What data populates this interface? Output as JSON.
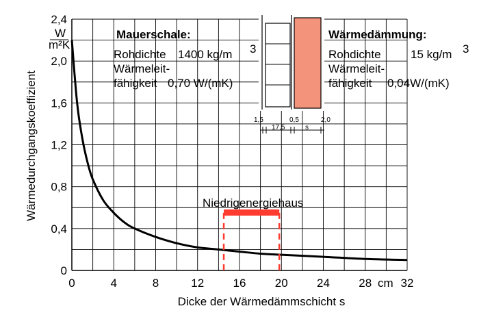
{
  "chart_data": {
    "type": "line",
    "xlabel": "Dicke der Wärmedämmschicht s",
    "ylabel": "Wärmedurchgangskoeffizient",
    "x_unit": "cm",
    "y_unit_num": "W",
    "y_unit_den": "m²K",
    "xlim": [
      0,
      32
    ],
    "ylim": [
      0,
      2.4
    ],
    "x_ticks": [
      "0",
      "4",
      "8",
      "12",
      "16",
      "20",
      "24",
      "28",
      "32"
    ],
    "y_ticks": [
      "0",
      "0,4",
      "0,8",
      "1,2",
      "1,6",
      "2,0",
      "2,4"
    ],
    "grid": true,
    "series": [
      {
        "x": [
          0,
          0.5,
          1,
          1.5,
          2,
          3,
          4,
          5,
          6,
          8,
          10,
          12,
          14,
          16,
          18,
          20,
          24,
          28,
          32
        ],
        "y": [
          2.2,
          1.6,
          1.26,
          1.03,
          0.87,
          0.67,
          0.55,
          0.46,
          0.4,
          0.32,
          0.26,
          0.22,
          0.2,
          0.18,
          0.16,
          0.15,
          0.13,
          0.11,
          0.1
        ]
      }
    ],
    "annotations": [
      {
        "text": "Niedrigenergiehaus",
        "x_range": [
          14.5,
          19.8
        ],
        "y_bar": 0.55,
        "color": "#ff3b2f"
      }
    ]
  },
  "mauerschale": {
    "title": "Mauerschale:",
    "line1_label": "Rohdichte",
    "line1_value": "1400 kg/m",
    "line1_sup": "3",
    "line2": "Wärmeleit-",
    "line3_label": "fähigkeit",
    "line3_value": "0,70 W/(mK)"
  },
  "waermedaemmung": {
    "title": "Wärmedämmung:",
    "line1_label": "Rohdichte",
    "line1_value": "15 kg/m",
    "line1_sup": "3",
    "line2": "Wärmeleit-",
    "line3_label": "fähigkeit",
    "line3_value": "0,04W/(mK)"
  },
  "wall_section": {
    "dims_top": [
      "1,5",
      "0,5",
      "2,0"
    ],
    "dims_bottom": [
      "17,5",
      "s"
    ],
    "insulation_color": "#f4937b"
  }
}
